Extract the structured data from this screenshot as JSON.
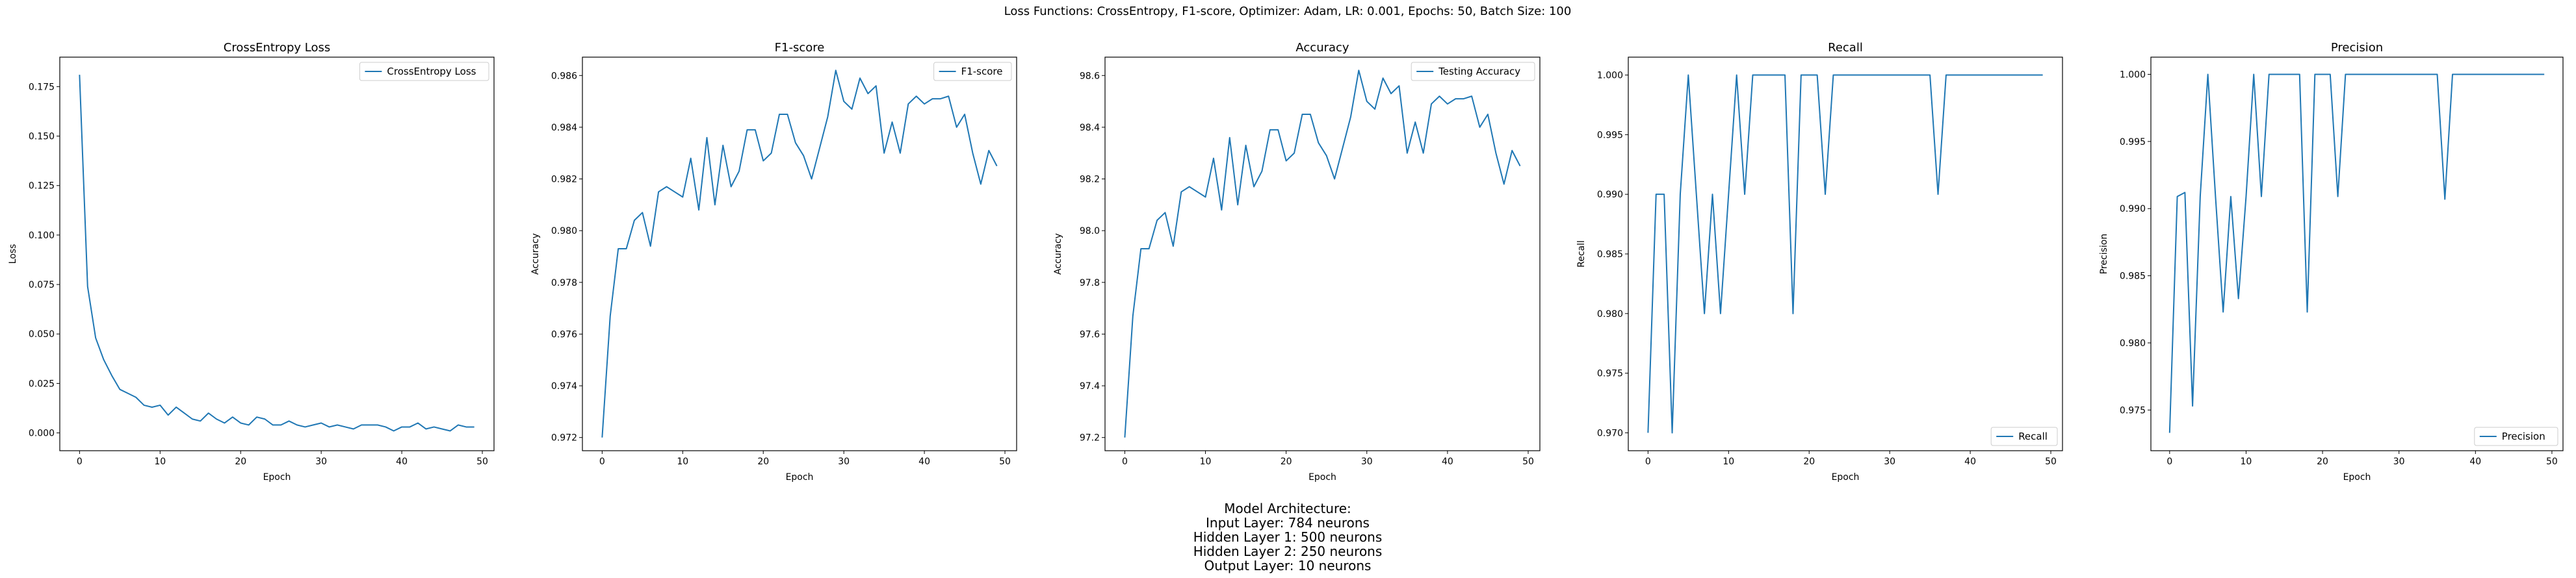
{
  "suptitle": "Loss Functions: CrossEntropy, F1-score, Optimizer: Adam, LR: 0.001, Epochs: 50, Batch Size: 100",
  "architecture": {
    "heading": "Model Architecture:",
    "lines": [
      "Input Layer: 784 neurons",
      "Hidden Layer 1: 500 neurons",
      "Hidden Layer 2: 250 neurons",
      "Output Layer: 10 neurons"
    ]
  },
  "colors": {
    "line": "#1f77b4",
    "axis": "#000000",
    "legend_border": "#cccccc"
  },
  "chart_data": [
    {
      "type": "line",
      "title": "CrossEntropy Loss",
      "xlabel": "Epoch",
      "ylabel": "Loss",
      "xlim": [
        -2.45,
        51.45
      ],
      "ylim": [
        -0.009,
        0.1899
      ],
      "xticks": [
        0,
        10,
        20,
        30,
        40,
        50
      ],
      "yticks": [
        0.0,
        0.025,
        0.05,
        0.075,
        0.1,
        0.125,
        0.15,
        0.175
      ],
      "ytick_labels": [
        "0.000",
        "0.025",
        "0.050",
        "0.075",
        "0.100",
        "0.125",
        "0.150",
        "0.175"
      ],
      "legend_position": "upper right",
      "series": [
        {
          "name": "CrossEntropy Loss",
          "values": [
            0.181,
            0.074,
            0.048,
            0.037,
            0.029,
            0.022,
            0.02,
            0.018,
            0.014,
            0.013,
            0.014,
            0.009,
            0.013,
            0.01,
            0.007,
            0.006,
            0.01,
            0.007,
            0.005,
            0.008,
            0.005,
            0.004,
            0.008,
            0.007,
            0.004,
            0.004,
            0.006,
            0.004,
            0.003,
            0.004,
            0.005,
            0.003,
            0.004,
            0.003,
            0.002,
            0.004,
            0.004,
            0.004,
            0.003,
            0.001,
            0.003,
            0.003,
            0.005,
            0.002,
            0.003,
            0.002,
            0.001,
            0.004,
            0.003,
            0.003
          ]
        }
      ]
    },
    {
      "type": "line",
      "title": "F1-score",
      "xlabel": "Epoch",
      "ylabel": "Accuracy",
      "xlim": [
        -2.45,
        51.45
      ],
      "ylim": [
        0.97149,
        0.98671
      ],
      "xticks": [
        0,
        10,
        20,
        30,
        40,
        50
      ],
      "yticks": [
        0.972,
        0.974,
        0.976,
        0.978,
        0.98,
        0.982,
        0.984,
        0.986
      ],
      "ytick_labels": [
        "0.972",
        "0.974",
        "0.976",
        "0.978",
        "0.980",
        "0.982",
        "0.984",
        "0.986"
      ],
      "legend_position": "upper right",
      "series": [
        {
          "name": "F1-score",
          "values": [
            0.972,
            0.9767,
            0.9793,
            0.9793,
            0.9804,
            0.9807,
            0.9794,
            0.9815,
            0.9817,
            0.9815,
            0.9813,
            0.9828,
            0.9808,
            0.9836,
            0.981,
            0.9833,
            0.9817,
            0.9823,
            0.9839,
            0.9839,
            0.9827,
            0.983,
            0.9845,
            0.9845,
            0.9834,
            0.9829,
            0.982,
            0.9832,
            0.9844,
            0.9862,
            0.985,
            0.9847,
            0.9859,
            0.9853,
            0.9856,
            0.983,
            0.9842,
            0.983,
            0.9849,
            0.9852,
            0.9849,
            0.9851,
            0.9851,
            0.9852,
            0.984,
            0.9845,
            0.983,
            0.9818,
            0.9831,
            0.9825
          ]
        }
      ]
    },
    {
      "type": "line",
      "title": "Accuracy",
      "xlabel": "Epoch",
      "ylabel": "Accuracy",
      "xlim": [
        -2.45,
        51.45
      ],
      "ylim": [
        97.149,
        98.671
      ],
      "xticks": [
        0,
        10,
        20,
        30,
        40,
        50
      ],
      "yticks": [
        97.2,
        97.4,
        97.6,
        97.8,
        98.0,
        98.2,
        98.4,
        98.6
      ],
      "ytick_labels": [
        "97.2",
        "97.4",
        "97.6",
        "97.8",
        "98.0",
        "98.2",
        "98.4",
        "98.6"
      ],
      "legend_position": "upper right",
      "series": [
        {
          "name": "Testing Accuracy",
          "values": [
            97.2,
            97.67,
            97.93,
            97.93,
            98.04,
            98.07,
            97.94,
            98.15,
            98.17,
            98.15,
            98.13,
            98.28,
            98.08,
            98.36,
            98.1,
            98.33,
            98.17,
            98.23,
            98.39,
            98.39,
            98.27,
            98.3,
            98.45,
            98.45,
            98.34,
            98.29,
            98.2,
            98.32,
            98.44,
            98.62,
            98.5,
            98.47,
            98.59,
            98.53,
            98.56,
            98.3,
            98.42,
            98.3,
            98.49,
            98.52,
            98.49,
            98.51,
            98.51,
            98.52,
            98.4,
            98.45,
            98.3,
            98.18,
            98.31,
            98.25
          ]
        }
      ]
    },
    {
      "type": "line",
      "title": "Recall",
      "xlabel": "Epoch",
      "ylabel": "Recall",
      "xlim": [
        -2.45,
        51.45
      ],
      "ylim": [
        0.9685,
        1.0015
      ],
      "xticks": [
        0,
        10,
        20,
        30,
        40,
        50
      ],
      "yticks": [
        0.97,
        0.975,
        0.98,
        0.985,
        0.99,
        0.995,
        1.0
      ],
      "ytick_labels": [
        "0.970",
        "0.975",
        "0.980",
        "0.985",
        "0.990",
        "0.995",
        "1.000"
      ],
      "legend_position": "lower right",
      "series": [
        {
          "name": "Recall",
          "values": [
            0.97,
            0.99,
            0.99,
            0.97,
            0.99,
            1.0,
            0.99,
            0.98,
            0.99,
            0.98,
            0.99,
            1.0,
            0.99,
            1.0,
            1.0,
            1.0,
            1.0,
            1.0,
            0.98,
            1.0,
            1.0,
            1.0,
            0.99,
            1.0,
            1.0,
            1.0,
            1.0,
            1.0,
            1.0,
            1.0,
            1.0,
            1.0,
            1.0,
            1.0,
            1.0,
            1.0,
            0.99,
            1.0,
            1.0,
            1.0,
            1.0,
            1.0,
            1.0,
            1.0,
            1.0,
            1.0,
            1.0,
            1.0,
            1.0,
            1.0
          ]
        }
      ]
    },
    {
      "type": "line",
      "title": "Precision",
      "xlabel": "Epoch",
      "ylabel": "Precision",
      "xlim": [
        -2.45,
        51.45
      ],
      "ylim": [
        0.97197,
        1.00128
      ],
      "xticks": [
        0,
        10,
        20,
        30,
        40,
        50
      ],
      "yticks": [
        0.975,
        0.98,
        0.985,
        0.99,
        0.995,
        1.0
      ],
      "ytick_labels": [
        "0.975",
        "0.980",
        "0.985",
        "0.990",
        "0.995",
        "1.000"
      ],
      "legend_position": "lower right",
      "series": [
        {
          "name": "Precision",
          "values": [
            0.9733,
            0.9909,
            0.9912,
            0.9753,
            0.9909,
            1.0,
            0.9909,
            0.9823,
            0.9909,
            0.9833,
            0.9909,
            1.0,
            0.9909,
            1.0,
            1.0,
            1.0,
            1.0,
            1.0,
            0.9823,
            1.0,
            1.0,
            1.0,
            0.9909,
            1.0,
            1.0,
            1.0,
            1.0,
            1.0,
            1.0,
            1.0,
            1.0,
            1.0,
            1.0,
            1.0,
            1.0,
            1.0,
            0.9907,
            1.0,
            1.0,
            1.0,
            1.0,
            1.0,
            1.0,
            1.0,
            1.0,
            1.0,
            1.0,
            1.0,
            1.0,
            1.0
          ]
        }
      ]
    }
  ]
}
